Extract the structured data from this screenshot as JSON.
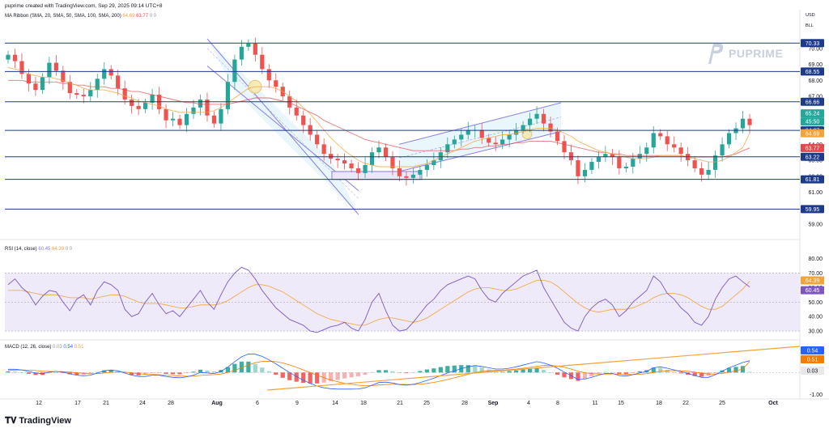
{
  "header": {
    "text": "puprime created with TradingView.com, Sep 29, 2025 09:14 UTC+8"
  },
  "axis_unit": {
    "currency": "USD",
    "unit": "BLL"
  },
  "brand": {
    "name": "PUPRIME"
  },
  "footer": {
    "logo_text": "TradingView"
  },
  "indicators": {
    "ma": {
      "label": "MA Ribbon (SMA, 20, SMA, 50, SMA, 100, SMA, 200)",
      "v1": "64.69",
      "v2": "63.77",
      "v3": "0",
      "v4": "0"
    },
    "rsi": {
      "label": "RSI (14, close)",
      "v1": "60.45",
      "v2": "64.39",
      "v3": "0",
      "v4": "0"
    },
    "macd": {
      "label": "MACD (12, 26, close)",
      "v1": "0.03",
      "v2": "0.54",
      "v3": "0.51"
    }
  },
  "colors": {
    "up": "#26a69a",
    "down": "#ef5350",
    "line_blue": "#1e3a8a",
    "channel": "#8c7ae6",
    "trend": "#f2a33a",
    "ma_fast": "#f2a33a",
    "ma_slow": "#e5484d"
  },
  "chart_data": [
    {
      "type": "candlestick",
      "title": "",
      "ylim": [
        58.5,
        71.0
      ],
      "y_ticks": [
        "70.00",
        "69.00",
        "68.00",
        "67.00",
        "66.00",
        "65.00",
        "64.00",
        "63.00",
        "62.00",
        "61.00",
        "60.00",
        "59.00"
      ],
      "x_ticks": [
        "12",
        "17",
        "21",
        "24",
        "28",
        "Aug",
        "6",
        "9",
        "14",
        "18",
        "21",
        "25",
        "28",
        "Sep",
        "4",
        "8",
        "11",
        "15",
        "18",
        "22",
        "25",
        "Oct"
      ],
      "horizontal_levels": [
        "70.33",
        "68.55",
        "66.66",
        "64.87",
        "63.22",
        "61.81",
        "59.95"
      ],
      "price_labels": [
        {
          "value": "70.33",
          "color": "#1e3a8a"
        },
        {
          "value": "68.55",
          "color": "#1e3a8a"
        },
        {
          "value": "66.66",
          "color": "#1e3a8a"
        },
        {
          "value": "65.24",
          "color": "#26a69a"
        },
        {
          "value": "45:50",
          "color": "#26a69a"
        },
        {
          "value": "64.87",
          "color": "#1e3a8a"
        },
        {
          "value": "64.69",
          "color": "#f2a33a"
        },
        {
          "value": "63.77",
          "color": "#e5484d"
        },
        {
          "value": "63.22",
          "color": "#1e3a8a"
        },
        {
          "value": "61.81",
          "color": "#1e3a8a"
        },
        {
          "value": "59.95",
          "color": "#1e3a8a"
        }
      ],
      "close_series": [
        69.6,
        69.2,
        68.4,
        67.8,
        67.4,
        68.2,
        69.1,
        68.6,
        67.9,
        67.2,
        67.1,
        67.0,
        67.4,
        68.1,
        68.7,
        68.3,
        67.5,
        66.8,
        66.4,
        66.2,
        66.6,
        67.1,
        66.2,
        65.5,
        65.6,
        65.2,
        65.9,
        66.3,
        66.8,
        65.8,
        65.3,
        66.2,
        67.9,
        69.3,
        70.1,
        70.3,
        69.6,
        68.7,
        68.0,
        67.6,
        67.0,
        66.3,
        65.8,
        65.2,
        64.6,
        64.0,
        63.4,
        63.1,
        63.0,
        62.8,
        62.5,
        62.2,
        62.7,
        63.5,
        63.8,
        63.2,
        62.5,
        62.0,
        61.9,
        62.1,
        62.4,
        62.7,
        63.0,
        63.5,
        64.0,
        64.3,
        64.6,
        64.9,
        64.9,
        64.4,
        64.1,
        64.0,
        64.3,
        64.6,
        64.9,
        65.2,
        65.6,
        65.9,
        65.3,
        64.8,
        64.2,
        63.5,
        63.0,
        62.0,
        62.4,
        62.9,
        63.2,
        63.4,
        63.2,
        62.5,
        62.6,
        63.1,
        63.4,
        63.8,
        64.7,
        64.5,
        64.0,
        63.8,
        63.4,
        63.0,
        62.5,
        62.1,
        62.4,
        63.3,
        64.0,
        64.7,
        65.0,
        65.6,
        65.2
      ],
      "ma_fast": [
        68.8,
        68.7,
        68.6,
        68.4,
        68.3,
        68.2,
        68.2,
        68.1,
        68.0,
        67.8,
        67.7,
        67.5,
        67.4,
        67.4,
        67.4,
        67.3,
        67.2,
        67.0,
        66.9,
        66.7,
        66.6,
        66.5,
        66.4,
        66.2,
        66.1,
        66.0,
        66.0,
        66.0,
        66.0,
        66.0,
        66.1,
        66.3,
        66.6,
        66.9,
        67.2,
        67.5,
        67.6,
        67.6,
        67.6,
        67.5,
        67.3,
        67.0,
        66.7,
        66.3,
        65.9,
        65.4,
        64.9,
        64.4,
        64.0,
        63.6,
        63.3,
        63.0,
        62.8,
        62.7,
        62.6,
        62.6,
        62.6,
        62.6,
        62.6,
        62.6,
        62.7,
        62.8,
        63.0,
        63.2,
        63.4,
        63.6,
        63.8,
        64.0,
        64.2,
        64.3,
        64.4,
        64.5,
        64.6,
        64.6,
        64.7,
        64.8,
        64.9,
        65.0,
        65.0,
        65.0,
        64.9,
        64.7,
        64.5,
        64.2,
        64.0,
        63.8,
        63.6,
        63.5,
        63.4,
        63.3,
        63.2,
        63.1,
        63.1,
        63.1,
        63.2,
        63.3,
        63.3,
        63.3,
        63.3,
        63.2,
        63.1,
        63.0,
        62.9,
        62.9,
        63.0,
        63.2,
        63.5,
        63.8,
        64.69
      ],
      "ma_slow": [
        68.0,
        68.0,
        68.0,
        67.9,
        67.9,
        67.9,
        67.9,
        67.9,
        67.8,
        67.8,
        67.7,
        67.7,
        67.6,
        67.6,
        67.6,
        67.5,
        67.5,
        67.4,
        67.3,
        67.3,
        67.2,
        67.1,
        67.0,
        66.9,
        66.8,
        66.7,
        66.6,
        66.6,
        66.5,
        66.5,
        66.5,
        66.5,
        66.5,
        66.6,
        66.7,
        66.8,
        66.9,
        66.9,
        66.9,
        66.8,
        66.7,
        66.6,
        66.4,
        66.2,
        66.0,
        65.8,
        65.5,
        65.3,
        65.1,
        64.9,
        64.7,
        64.5,
        64.3,
        64.2,
        64.1,
        64.0,
        63.9,
        63.8,
        63.7,
        63.6,
        63.6,
        63.6,
        63.6,
        63.6,
        63.6,
        63.6,
        63.7,
        63.7,
        63.8,
        63.8,
        63.9,
        63.9,
        64.0,
        64.0,
        64.1,
        64.1,
        64.2,
        64.2,
        64.2,
        64.2,
        64.1,
        64.0,
        63.9,
        63.8,
        63.7,
        63.6,
        63.5,
        63.5,
        63.4,
        63.4,
        63.3,
        63.3,
        63.3,
        63.3,
        63.3,
        63.3,
        63.3,
        63.3,
        63.3,
        63.2,
        63.2,
        63.2,
        63.2,
        63.2,
        63.2,
        63.3,
        63.4,
        63.6,
        63.77
      ]
    },
    {
      "type": "line",
      "title": "",
      "ylim": [
        25,
        82
      ],
      "y_ticks": [
        "80.00",
        "70.00",
        "60.00",
        "50.00",
        "40.00",
        "30.00"
      ],
      "bands": [
        30,
        50,
        70
      ],
      "series": [
        {
          "values": [
            62,
            66,
            60,
            56,
            48,
            54,
            58,
            57,
            50,
            44,
            52,
            55,
            48,
            58,
            64,
            62,
            58,
            45,
            40,
            42,
            50,
            56,
            48,
            42,
            44,
            40,
            46,
            52,
            58,
            50,
            45,
            55,
            64,
            70,
            74,
            72,
            66,
            58,
            52,
            46,
            42,
            38,
            36,
            34,
            30,
            29,
            31,
            33,
            34,
            36,
            32,
            30,
            38,
            50,
            56,
            44,
            34,
            30,
            31,
            36,
            42,
            48,
            52,
            58,
            62,
            64,
            66,
            68,
            66,
            58,
            52,
            50,
            56,
            60,
            64,
            68,
            70,
            72,
            60,
            52,
            44,
            36,
            32,
            30,
            40,
            46,
            50,
            52,
            48,
            40,
            44,
            50,
            54,
            58,
            68,
            64,
            56,
            52,
            46,
            42,
            36,
            34,
            40,
            52,
            60,
            66,
            68,
            64,
            60.45
          ]
        },
        {
          "values": [
            58,
            58,
            58,
            57,
            56,
            55,
            55,
            55,
            54,
            53,
            53,
            53,
            52,
            53,
            54,
            55,
            55,
            54,
            52,
            50,
            49,
            49,
            49,
            48,
            47,
            46,
            46,
            47,
            48,
            48,
            48,
            49,
            51,
            54,
            57,
            60,
            62,
            62,
            61,
            59,
            57,
            54,
            51,
            48,
            45,
            42,
            40,
            38,
            37,
            36,
            35,
            34,
            34,
            36,
            38,
            39,
            39,
            38,
            37,
            36,
            37,
            39,
            42,
            45,
            48,
            51,
            54,
            57,
            59,
            60,
            60,
            59,
            58,
            58,
            59,
            61,
            63,
            65,
            65,
            64,
            61,
            57,
            53,
            49,
            46,
            44,
            43,
            44,
            45,
            45,
            45,
            46,
            48,
            50,
            53,
            55,
            56,
            56,
            55,
            53,
            50,
            47,
            45,
            45,
            47,
            51,
            55,
            59,
            64.39
          ]
        }
      ]
    },
    {
      "type": "bar+line",
      "title": "",
      "ylim": [
        -1.1,
        1.2
      ],
      "y_ticks": [
        "1.00",
        "0.00",
        "-1.00"
      ],
      "macd_line": [
        0.15,
        0.15,
        0.12,
        0.05,
        -0.02,
        -0.05,
        0.02,
        0.05,
        0.02,
        -0.06,
        -0.12,
        -0.15,
        -0.12,
        -0.02,
        0.08,
        0.12,
        0.08,
        -0.02,
        -0.12,
        -0.18,
        -0.18,
        -0.12,
        -0.12,
        -0.18,
        -0.22,
        -0.24,
        -0.2,
        -0.12,
        0.0,
        -0.02,
        -0.05,
        0.05,
        0.25,
        0.5,
        0.72,
        0.85,
        0.84,
        0.74,
        0.58,
        0.4,
        0.2,
        0.0,
        -0.18,
        -0.35,
        -0.5,
        -0.62,
        -0.7,
        -0.74,
        -0.76,
        -0.76,
        -0.76,
        -0.75,
        -0.7,
        -0.58,
        -0.46,
        -0.44,
        -0.48,
        -0.55,
        -0.58,
        -0.54,
        -0.46,
        -0.36,
        -0.26,
        -0.14,
        -0.02,
        0.08,
        0.18,
        0.26,
        0.32,
        0.28,
        0.22,
        0.16,
        0.16,
        0.2,
        0.26,
        0.34,
        0.42,
        0.5,
        0.44,
        0.34,
        0.2,
        0.02,
        -0.14,
        -0.32,
        -0.3,
        -0.22,
        -0.12,
        -0.04,
        -0.04,
        -0.14,
        -0.16,
        -0.1,
        -0.02,
        0.06,
        0.22,
        0.26,
        0.2,
        0.12,
        0.04,
        -0.04,
        -0.14,
        -0.22,
        -0.22,
        -0.1,
        0.06,
        0.22,
        0.34,
        0.46,
        0.54
      ],
      "signal_line": [
        0.1,
        0.11,
        0.12,
        0.11,
        0.09,
        0.06,
        0.05,
        0.05,
        0.04,
        0.02,
        -0.01,
        -0.04,
        -0.06,
        -0.05,
        -0.02,
        0.01,
        0.03,
        0.02,
        -0.01,
        -0.05,
        -0.08,
        -0.09,
        -0.1,
        -0.12,
        -0.14,
        -0.16,
        -0.17,
        -0.16,
        -0.13,
        -0.11,
        -0.1,
        -0.07,
        0.0,
        0.1,
        0.22,
        0.35,
        0.45,
        0.51,
        0.52,
        0.5,
        0.44,
        0.35,
        0.24,
        0.12,
        0.0,
        -0.12,
        -0.24,
        -0.34,
        -0.42,
        -0.49,
        -0.54,
        -0.58,
        -0.6,
        -0.6,
        -0.57,
        -0.55,
        -0.54,
        -0.54,
        -0.55,
        -0.55,
        -0.53,
        -0.5,
        -0.45,
        -0.39,
        -0.32,
        -0.24,
        -0.16,
        -0.08,
        0.0,
        0.05,
        0.08,
        0.1,
        0.11,
        0.13,
        0.16,
        0.2,
        0.24,
        0.29,
        0.32,
        0.33,
        0.3,
        0.24,
        0.16,
        0.06,
        -0.01,
        -0.05,
        -0.07,
        -0.07,
        -0.06,
        -0.08,
        -0.09,
        -0.09,
        -0.08,
        -0.05,
        0.0,
        0.05,
        0.08,
        0.09,
        0.08,
        0.06,
        0.02,
        -0.03,
        -0.07,
        -0.07,
        -0.04,
        0.01,
        0.08,
        0.16,
        0.51
      ]
    }
  ]
}
